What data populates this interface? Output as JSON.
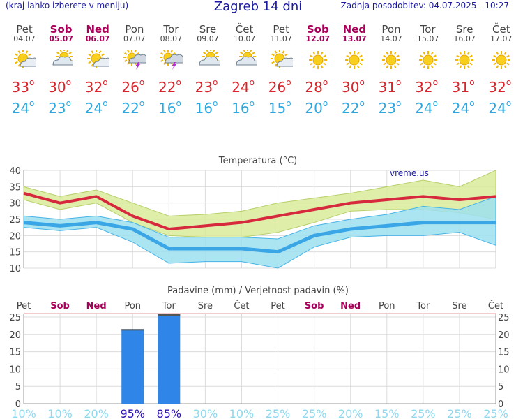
{
  "header": {
    "menu_hint": "(kraj lahko izberete v meniju)",
    "title": "Zagreb 14 dni",
    "updated": "Zadnja posodobitev: 04.07.2025 - 10:27"
  },
  "days": [
    {
      "name": "Pet",
      "date": "04.07",
      "weekend": false,
      "icon": "sun-cloud-icon",
      "tmax": 33,
      "tmin": 24
    },
    {
      "name": "Sob",
      "date": "05.07",
      "weekend": true,
      "icon": "cloud-sun-icon",
      "tmax": 30,
      "tmin": 23
    },
    {
      "name": "Ned",
      "date": "06.07",
      "weekend": true,
      "icon": "sun-cloud-icon",
      "tmax": 32,
      "tmin": 24
    },
    {
      "name": "Pon",
      "date": "07.07",
      "weekend": false,
      "icon": "thunderstorm-icon",
      "tmax": 26,
      "tmin": 22
    },
    {
      "name": "Tor",
      "date": "08.07",
      "weekend": false,
      "icon": "thunderstorm-icon",
      "tmax": 22,
      "tmin": 16
    },
    {
      "name": "Sre",
      "date": "09.07",
      "weekend": false,
      "icon": "cloud-sun-icon",
      "tmax": 23,
      "tmin": 16
    },
    {
      "name": "Čet",
      "date": "10.07",
      "weekend": false,
      "icon": "cloud-sun-icon",
      "tmax": 24,
      "tmin": 16
    },
    {
      "name": "Pet",
      "date": "11.07",
      "weekend": false,
      "icon": "sun-cloud-icon",
      "tmax": 26,
      "tmin": 15
    },
    {
      "name": "Sob",
      "date": "12.07",
      "weekend": true,
      "icon": "sun-icon",
      "tmax": 28,
      "tmin": 20
    },
    {
      "name": "Ned",
      "date": "13.07",
      "weekend": true,
      "icon": "sun-icon",
      "tmax": 30,
      "tmin": 22
    },
    {
      "name": "Pon",
      "date": "14.07",
      "weekend": false,
      "icon": "sun-icon",
      "tmax": 31,
      "tmin": 23
    },
    {
      "name": "Tor",
      "date": "15.07",
      "weekend": false,
      "icon": "sun-icon",
      "tmax": 32,
      "tmin": 24
    },
    {
      "name": "Sre",
      "date": "16.07",
      "weekend": false,
      "icon": "sun-icon",
      "tmax": 31,
      "tmin": 24
    },
    {
      "name": "Čet",
      "date": "17.07",
      "weekend": false,
      "icon": "sun-icon",
      "tmax": 32,
      "tmin": 24
    }
  ],
  "degree_symbol": "o",
  "chart_data": [
    {
      "type": "line",
      "title": "Temperatura (°C)",
      "watermark": "vreme.us",
      "categories": [
        "Pet",
        "Sob",
        "Ned",
        "Pon",
        "Tor",
        "Sre",
        "Čet",
        "Pet",
        "Sob",
        "Ned",
        "Pon",
        "Tor",
        "Sre",
        "Čet"
      ],
      "ylim": [
        10,
        40
      ],
      "yticks": [
        10,
        15,
        20,
        25,
        30,
        35,
        40
      ],
      "grid": true,
      "series": [
        {
          "role": "max",
          "color": "#d6293e",
          "values": [
            33,
            30,
            32,
            26,
            22,
            23,
            24,
            26,
            28,
            30,
            31,
            32,
            31,
            32
          ]
        },
        {
          "role": "min",
          "color": "#3aa6e6",
          "values": [
            24,
            23,
            24,
            22,
            16,
            16,
            16,
            15,
            20,
            22,
            23,
            24,
            24,
            24
          ]
        }
      ],
      "max_band": {
        "color": "#d9eb9a",
        "upper": [
          35,
          32,
          34,
          30,
          26,
          26.5,
          27.5,
          30,
          31.5,
          33,
          35,
          37,
          35,
          40
        ],
        "lower": [
          31,
          28,
          30,
          24,
          20,
          19.5,
          19.5,
          21,
          24,
          27.5,
          28,
          28,
          27,
          25
        ]
      },
      "min_band": {
        "color": "#9ee0f0",
        "upper": [
          26,
          25,
          26,
          24,
          19.5,
          19.5,
          19.5,
          19,
          23,
          25,
          26.5,
          29,
          28,
          32
        ],
        "lower": [
          22.5,
          21.5,
          22.5,
          18,
          11.5,
          12,
          12,
          10,
          16.5,
          19.5,
          20,
          20,
          21,
          17
        ]
      }
    },
    {
      "type": "bar",
      "title": "Padavine (mm) / Verjetnost padavin (%)",
      "categories": [
        "Pet",
        "Sob",
        "Ned",
        "Pon",
        "Tor",
        "Sre",
        "Čet",
        "Pet",
        "Sob",
        "Ned",
        "Pon",
        "Tor",
        "Sre",
        "Čet"
      ],
      "values": [
        0,
        0,
        0,
        21.5,
        25.8,
        0,
        0,
        0,
        0,
        0,
        0,
        0,
        0,
        0
      ],
      "probability": [
        "10%",
        "10%",
        "20%",
        "95%",
        "85%",
        "30%",
        "10%",
        "25%",
        "25%",
        "20%",
        "15%",
        "25%",
        "25%",
        "25%"
      ],
      "probability_high": [
        false,
        false,
        false,
        true,
        true,
        false,
        false,
        false,
        false,
        false,
        false,
        false,
        false,
        false
      ],
      "ylim": [
        0,
        26
      ],
      "yticks": [
        0,
        5,
        10,
        15,
        20,
        25
      ],
      "bar_color": "#2f86e8",
      "grid": true
    }
  ]
}
